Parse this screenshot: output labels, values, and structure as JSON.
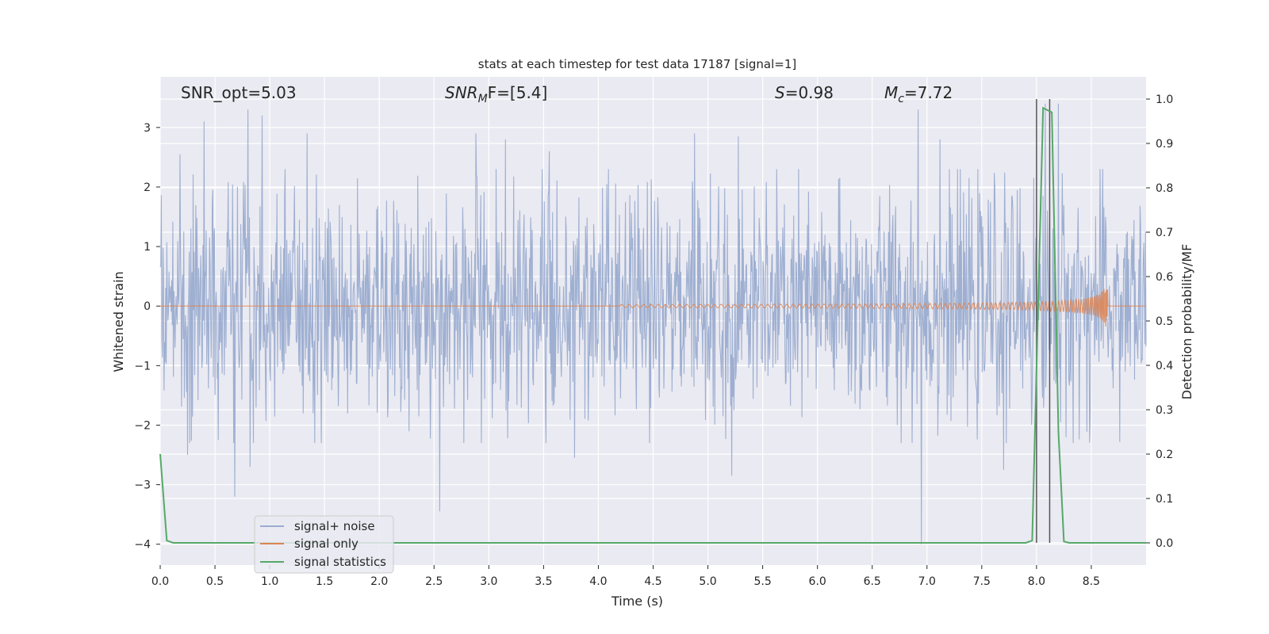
{
  "chart_data": {
    "type": "line",
    "title": "stats at each timestep for test data 17187 [signal=1]",
    "xlabel": "Time (s)",
    "ylabel_left": "Whitened strain",
    "ylabel_right": "Detection probability/MF",
    "xlim": [
      0.0,
      9.0
    ],
    "ylim_left": [
      -4.35,
      3.85
    ],
    "ylim_right": [
      -0.05,
      1.05
    ],
    "x_ticks": [
      "0.0",
      "0.5",
      "1.0",
      "1.5",
      "2.0",
      "2.5",
      "3.0",
      "3.5",
      "4.0",
      "4.5",
      "5.0",
      "5.5",
      "6.0",
      "6.5",
      "7.0",
      "7.5",
      "8.0",
      "8.5"
    ],
    "y_ticks_left": [
      "3",
      "2",
      "1",
      "0",
      "−1",
      "−2",
      "−3",
      "−4"
    ],
    "y_ticks_right": [
      "1.0",
      "0.9",
      "0.8",
      "0.7",
      "0.6",
      "0.5",
      "0.4",
      "0.3",
      "0.2",
      "0.1",
      "0.0"
    ],
    "grid": true,
    "legend_placement": "lower-left",
    "annotations": {
      "snr_opt": "SNR_opt=5.03",
      "snr_mf_main": "SNR",
      "snr_mf_sub": "M",
      "snr_mf_rest": "F=[5.4]",
      "s_var": "S",
      "s_rest": "=0.98",
      "mc_var": "M",
      "mc_sub": "c",
      "mc_rest": "=7.72"
    },
    "vertical_lines_x": [
      8.0,
      8.12
    ],
    "series": [
      {
        "name": "signal+ noise",
        "color": "#9aaccf",
        "description_values": "white noise, amplitude ~±1.7, peaks up to 3.3, min -4.0",
        "noise_std": 0.95,
        "notable_spikes": [
          [
            0.18,
            2.55
          ],
          [
            0.25,
            -2.5
          ],
          [
            0.4,
            3.1
          ],
          [
            0.68,
            -3.2
          ],
          [
            0.8,
            3.3
          ],
          [
            0.82,
            -2.7
          ],
          [
            0.93,
            3.2
          ],
          [
            1.34,
            2.9
          ],
          [
            2.55,
            -3.45
          ],
          [
            2.88,
            2.9
          ],
          [
            3.15,
            2.8
          ],
          [
            3.55,
            2.6
          ],
          [
            3.78,
            -2.55
          ],
          [
            4.88,
            2.9
          ],
          [
            5.22,
            -2.85
          ],
          [
            5.28,
            2.85
          ],
          [
            6.92,
            3.3
          ],
          [
            6.95,
            -4.0
          ],
          [
            7.12,
            2.8
          ],
          [
            7.7,
            -2.75
          ],
          [
            8.08,
            3.4
          ],
          [
            8.2,
            3.4
          ],
          [
            8.22,
            -1.95
          ]
        ]
      },
      {
        "name": "signal only",
        "color": "#dd8452",
        "description_values": "chirp growing from ~4.2 s to merger at 8.65 s, max amplitude ~0.5",
        "t_start": 4.2,
        "t_merger": 8.65,
        "max_amp": 0.5
      },
      {
        "name": "signal statistics",
        "color": "#55a868",
        "axis": "right",
        "x": [
          0.0,
          0.06,
          0.12,
          7.9,
          7.96,
          8.06,
          8.1,
          8.14,
          8.2,
          8.25,
          8.3,
          9.0
        ],
        "y": [
          0.2,
          0.005,
          0.0,
          0.0,
          0.005,
          0.98,
          0.975,
          0.97,
          0.25,
          0.003,
          0.0,
          0.0
        ]
      }
    ]
  }
}
